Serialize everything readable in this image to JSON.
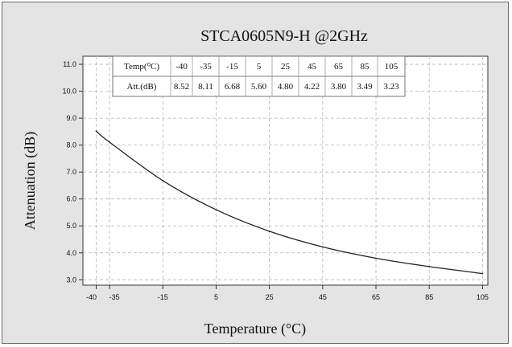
{
  "chart_data": {
    "type": "line",
    "title": "STCA0605N9-H @2GHz",
    "xlabel": "Temperature (°C)",
    "ylabel": "Attenuation (dB)",
    "xlim": [
      -45,
      107
    ],
    "ylim": [
      2.8,
      11.3
    ],
    "x_ticks": [
      -40,
      -35,
      -15,
      5,
      25,
      45,
      65,
      85,
      105
    ],
    "x_tick_labels": [
      "-40",
      "-35",
      "-15",
      "5",
      "25",
      "45",
      "65",
      "85",
      "105"
    ],
    "y_ticks": [
      3.0,
      4.0,
      5.0,
      6.0,
      7.0,
      8.0,
      9.0,
      10.0,
      11.0
    ],
    "y_tick_labels": [
      "3.0",
      "4.0",
      "5.0",
      "6.0",
      "7.0",
      "8.0",
      "9.0",
      "10.0",
      "11.0"
    ],
    "grid": true,
    "series": [
      {
        "x": [
          -40,
          -35,
          -15,
          5,
          25,
          45,
          65,
          85,
          105
        ],
        "values": [
          8.52,
          8.11,
          6.68,
          5.6,
          4.8,
          4.22,
          3.8,
          3.49,
          3.23
        ]
      }
    ],
    "table": {
      "row_labels": [
        "Temp(⁰C)",
        "Att.(dB)"
      ],
      "temps": [
        "-40",
        "-35",
        "-15",
        "5",
        "25",
        "45",
        "65",
        "85",
        "105"
      ],
      "atts": [
        "8.52",
        "8.11",
        "6.68",
        "5.60",
        "4.80",
        "4.22",
        "3.80",
        "3.49",
        "3.23"
      ]
    }
  },
  "colors": {
    "background": "#e4e4e4",
    "plot_area": "#ffffff",
    "line": "#222222",
    "grid": "#b5b5b5"
  }
}
